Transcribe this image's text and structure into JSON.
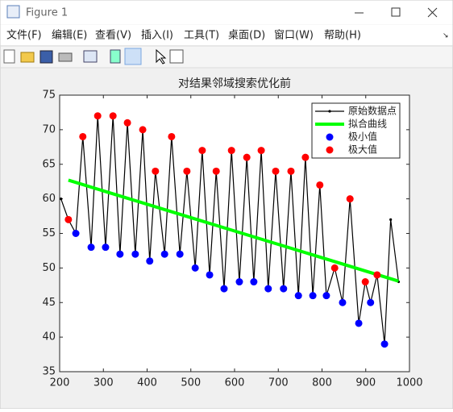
{
  "window": {
    "title": "Figure 1",
    "menu": [
      "文件(F)",
      "编辑(E)",
      "查看(V)",
      "插入(I)",
      "工具(T)",
      "桌面(D)",
      "窗口(W)",
      "帮助(H)"
    ]
  },
  "chart_data": {
    "type": "line",
    "title": "对结果邻域搜索优化前",
    "xlim": [
      200,
      1000
    ],
    "xticks": [
      200,
      300,
      400,
      500,
      600,
      700,
      800,
      900,
      1000
    ],
    "ylim": [
      35,
      75
    ],
    "yticks": [
      35,
      40,
      45,
      50,
      55,
      60,
      65,
      70,
      75
    ],
    "legend": "northeast",
    "series": [
      {
        "name": "原始数据点",
        "color": "#000000",
        "mode": "line-dots",
        "x": [
          203,
          220,
          237,
          253,
          272,
          287,
          305,
          322,
          338,
          355,
          373,
          390,
          406,
          419,
          440,
          456,
          475,
          491,
          510,
          526,
          543,
          558,
          576,
          593,
          611,
          628,
          644,
          661,
          677,
          694,
          712,
          729,
          746,
          762,
          779,
          795,
          810,
          829,
          847,
          864,
          884,
          899,
          911,
          926,
          943,
          957,
          975
        ],
        "values": [
          60,
          57,
          55,
          69,
          53,
          72,
          53,
          72,
          52,
          71,
          52,
          70,
          51,
          64,
          52,
          69,
          52,
          64,
          50,
          67,
          49,
          64,
          47,
          67,
          48,
          66,
          48,
          67,
          47,
          64,
          47,
          64,
          46,
          66,
          46,
          62,
          46,
          50,
          45,
          60,
          42,
          48,
          45,
          49,
          39,
          57,
          48
        ]
      },
      {
        "name": "拟合曲线",
        "color": "#00ff00",
        "mode": "thick-line",
        "x": [
          220,
          975
        ],
        "values": [
          62.7,
          48.1
        ]
      },
      {
        "name": "极小值",
        "color": "#0000ff",
        "mode": "markers",
        "x": [
          237,
          272,
          305,
          338,
          373,
          406,
          440,
          475,
          510,
          543,
          576,
          611,
          644,
          677,
          712,
          746,
          779,
          810,
          847,
          884,
          911,
          943
        ],
        "values": [
          55,
          53,
          53,
          52,
          52,
          51,
          52,
          52,
          50,
          49,
          47,
          48,
          48,
          47,
          47,
          46,
          46,
          46,
          45,
          42,
          45,
          39
        ]
      },
      {
        "name": "极大值",
        "color": "#ff0000",
        "mode": "markers",
        "x": [
          220,
          253,
          287,
          322,
          355,
          390,
          419,
          456,
          491,
          526,
          558,
          593,
          628,
          661,
          694,
          729,
          762,
          795,
          829,
          864,
          899,
          926
        ],
        "values": [
          57,
          69,
          72,
          72,
          71,
          70,
          64,
          69,
          64,
          67,
          64,
          67,
          66,
          67,
          64,
          64,
          66,
          62,
          50,
          60,
          48,
          49
        ]
      }
    ]
  }
}
